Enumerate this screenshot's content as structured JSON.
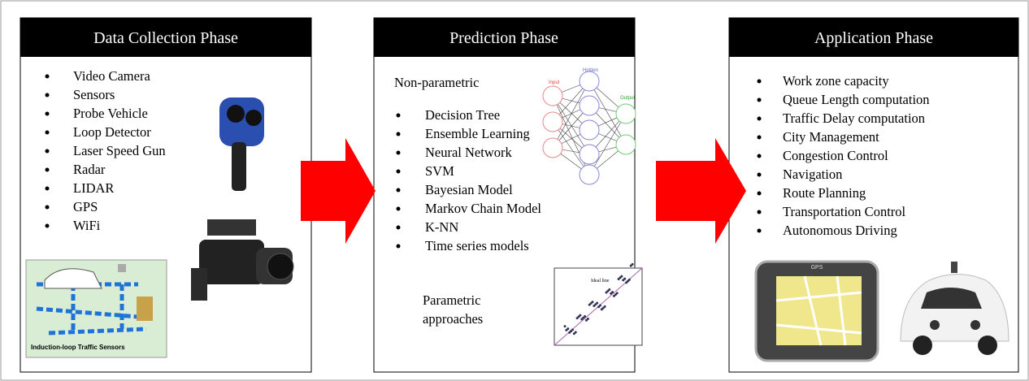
{
  "panels": [
    {
      "title": "Data Collection Phase",
      "items": [
        "Video Camera",
        "Sensors",
        "Probe Vehicle",
        "Loop Detector",
        "Laser Speed Gun",
        "Radar",
        "LIDAR",
        "GPS",
        "WiFi"
      ]
    },
    {
      "title": "Prediction Phase",
      "intro": "Non-parametric",
      "items": [
        "Decision Tree",
        "Ensemble Learning",
        "Neural Network",
        "SVM",
        "Bayesian Model",
        "Markov Chain Model",
        "K-NN",
        "Time series models"
      ],
      "footer": [
        "Parametric",
        "approaches"
      ]
    },
    {
      "title": "Application Phase",
      "items": [
        "Work zone capacity",
        "Queue Length computation",
        "Traffic Delay computation",
        "City Management",
        "Congestion Control",
        "Navigation",
        "Route Planning",
        "Transportation Control",
        "Autonomous Driving"
      ]
    }
  ],
  "figures": {
    "network_labels": [
      "Input",
      "Hidden",
      "Output"
    ],
    "plot_label": "Ideal line",
    "sensor_caption": "Induction-loop Traffic Sensors",
    "gps_label": "GPS"
  }
}
